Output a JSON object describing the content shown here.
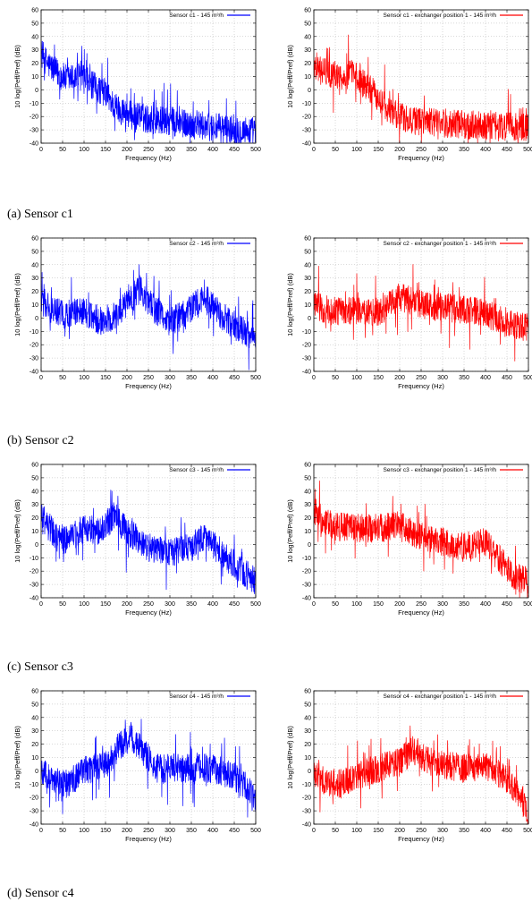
{
  "captions": [
    "(a)  Sensor c1",
    "(b)  Sensor c2",
    "(c)  Sensor c3",
    "(d)  Sensor c4"
  ],
  "chart_data": [
    {
      "type": "line",
      "panel": "a-left",
      "color": "#0000ff",
      "legend": "Sensor c1 - 145 m³/h",
      "xlabel": "Frequency (Hz)",
      "ylabel": "10 log(Peff/Pref) (dB)",
      "xlim": [
        0,
        500
      ],
      "ylim": [
        -40,
        60
      ],
      "xticks": [
        0,
        50,
        100,
        150,
        200,
        250,
        300,
        350,
        400,
        450,
        500
      ],
      "yticks": [
        -40,
        -30,
        -20,
        -10,
        0,
        10,
        20,
        30,
        40,
        50,
        60
      ],
      "grid": true,
      "legend_position": "top-right",
      "envelope": {
        "x": [
          0,
          10,
          20,
          40,
          60,
          90,
          100,
          120,
          150,
          170,
          200,
          250,
          300,
          350,
          400,
          450,
          500
        ],
        "y": [
          28,
          22,
          18,
          12,
          8,
          10,
          8,
          3,
          -2,
          -12,
          -18,
          -22,
          -24,
          -26,
          -28,
          -30,
          -31
        ]
      }
    },
    {
      "type": "line",
      "panel": "a-right",
      "color": "#ff0000",
      "legend": "Sensor c1 - exchanger position 1 - 145 m³/h",
      "xlabel": "Frequency (Hz)",
      "ylabel": "10 log(Peff/Pref) (dB)",
      "xlim": [
        0,
        500
      ],
      "ylim": [
        -40,
        60
      ],
      "xticks": [
        0,
        50,
        100,
        150,
        200,
        250,
        300,
        350,
        400,
        450,
        500
      ],
      "yticks": [
        -40,
        -30,
        -20,
        -10,
        0,
        10,
        20,
        30,
        40,
        50,
        60
      ],
      "grid": true,
      "legend_position": "top-right",
      "envelope": {
        "x": [
          0,
          10,
          20,
          40,
          60,
          90,
          100,
          120,
          150,
          170,
          200,
          250,
          300,
          350,
          400,
          450,
          500
        ],
        "y": [
          20,
          16,
          14,
          12,
          10,
          12,
          10,
          3,
          -5,
          -15,
          -20,
          -24,
          -25,
          -26,
          -27,
          -28,
          -28
        ]
      }
    },
    {
      "type": "line",
      "panel": "b-left",
      "color": "#0000ff",
      "legend": "Sensor c2 - 145 m³/h",
      "xlabel": "Frequency (Hz)",
      "ylabel": "10 log(Peff/Pref) (dB)",
      "xlim": [
        0,
        500
      ],
      "ylim": [
        -40,
        60
      ],
      "xticks": [
        0,
        50,
        100,
        150,
        200,
        250,
        300,
        350,
        400,
        450,
        500
      ],
      "yticks": [
        -40,
        -30,
        -20,
        -10,
        0,
        10,
        20,
        30,
        40,
        50,
        60
      ],
      "grid": true,
      "legend_position": "top-right",
      "envelope": {
        "x": [
          0,
          20,
          50,
          100,
          150,
          200,
          230,
          260,
          300,
          330,
          380,
          420,
          460,
          500
        ],
        "y": [
          12,
          8,
          2,
          5,
          -4,
          10,
          22,
          8,
          -3,
          2,
          15,
          2,
          -8,
          -15
        ]
      }
    },
    {
      "type": "line",
      "panel": "b-right",
      "color": "#ff0000",
      "legend": "Sensor c2 - exchanger position 1 - 145 m³/h",
      "xlabel": "Frequency (Hz)",
      "ylabel": "10 log(Peff/Pref) (dB)",
      "xlim": [
        0,
        500
      ],
      "ylim": [
        -40,
        60
      ],
      "xticks": [
        0,
        50,
        100,
        150,
        200,
        250,
        300,
        350,
        400,
        450,
        500
      ],
      "yticks": [
        -40,
        -30,
        -20,
        -10,
        0,
        10,
        20,
        30,
        40,
        50,
        60
      ],
      "grid": true,
      "legend_position": "top-right",
      "envelope": {
        "x": [
          0,
          30,
          60,
          100,
          150,
          200,
          250,
          300,
          350,
          400,
          450,
          500
        ],
        "y": [
          10,
          6,
          5,
          6,
          4,
          16,
          10,
          8,
          6,
          4,
          -4,
          -8
        ]
      }
    },
    {
      "type": "line",
      "panel": "c-left",
      "color": "#0000ff",
      "legend": "Sensor c3 - 145 m³/h",
      "xlabel": "Frequency (Hz)",
      "ylabel": "10 log(Peff/Pref) (dB)",
      "xlim": [
        0,
        500
      ],
      "ylim": [
        -40,
        60
      ],
      "xticks": [
        0,
        50,
        100,
        150,
        200,
        250,
        300,
        350,
        400,
        450,
        500
      ],
      "yticks": [
        -40,
        -30,
        -20,
        -10,
        0,
        10,
        20,
        30,
        40,
        50,
        60
      ],
      "grid": true,
      "legend_position": "top-right",
      "envelope": {
        "x": [
          0,
          20,
          50,
          100,
          140,
          170,
          200,
          250,
          300,
          350,
          380,
          420,
          460,
          500
        ],
        "y": [
          20,
          12,
          2,
          12,
          10,
          22,
          10,
          -2,
          -6,
          -2,
          6,
          -6,
          -18,
          -28
        ]
      }
    },
    {
      "type": "line",
      "panel": "c-right",
      "color": "#ff0000",
      "legend": "Sensor c3 - exchanger position 1 - 145 m³/h",
      "xlabel": "Frequency (Hz)",
      "ylabel": "10 log(Peff/Pref) (dB)",
      "xlim": [
        0,
        500
      ],
      "ylim": [
        -40,
        60
      ],
      "xticks": [
        0,
        50,
        100,
        150,
        200,
        250,
        300,
        350,
        400,
        450,
        500
      ],
      "yticks": [
        -40,
        -30,
        -20,
        -10,
        0,
        10,
        20,
        30,
        40,
        50,
        60
      ],
      "grid": true,
      "legend_position": "top-right",
      "envelope": {
        "x": [
          0,
          20,
          50,
          100,
          150,
          200,
          250,
          300,
          350,
          400,
          430,
          460,
          500
        ],
        "y": [
          25,
          18,
          14,
          12,
          12,
          14,
          6,
          2,
          -2,
          2,
          -10,
          -22,
          -28
        ]
      }
    },
    {
      "type": "line",
      "panel": "d-left",
      "color": "#0000ff",
      "legend": "Sensor c4 - 145 m³/h",
      "xlabel": "Frequency (Hz)",
      "ylabel": "10 log(Peff/Pref) (dB)",
      "xlim": [
        0,
        500
      ],
      "ylim": [
        -40,
        60
      ],
      "xticks": [
        0,
        50,
        100,
        150,
        200,
        250,
        300,
        350,
        400,
        450,
        500
      ],
      "yticks": [
        -40,
        -30,
        -20,
        -10,
        0,
        10,
        20,
        30,
        40,
        50,
        60
      ],
      "grid": true,
      "legend_position": "top-right",
      "envelope": {
        "x": [
          0,
          30,
          60,
          100,
          150,
          180,
          210,
          240,
          270,
          300,
          350,
          400,
          450,
          480,
          500
        ],
        "y": [
          -2,
          -6,
          -10,
          0,
          4,
          18,
          26,
          14,
          2,
          2,
          2,
          2,
          -4,
          -12,
          -25
        ]
      }
    },
    {
      "type": "line",
      "panel": "d-right",
      "color": "#ff0000",
      "legend": "Sensor c4 - exchanger position 1 - 145 m³/h",
      "xlabel": "Frequency (Hz)",
      "ylabel": "10 log(Peff/Pref) (dB)",
      "xlim": [
        0,
        500
      ],
      "ylim": [
        -40,
        60
      ],
      "xticks": [
        0,
        50,
        100,
        150,
        200,
        250,
        300,
        350,
        400,
        450,
        500
      ],
      "yticks": [
        -40,
        -30,
        -20,
        -10,
        0,
        10,
        20,
        30,
        40,
        50,
        60
      ],
      "grid": true,
      "legend_position": "top-right",
      "envelope": {
        "x": [
          0,
          30,
          60,
          100,
          150,
          200,
          230,
          260,
          300,
          350,
          400,
          450,
          480,
          500
        ],
        "y": [
          -2,
          -8,
          -10,
          -4,
          2,
          6,
          16,
          8,
          4,
          2,
          4,
          -6,
          -18,
          -30
        ]
      }
    }
  ]
}
